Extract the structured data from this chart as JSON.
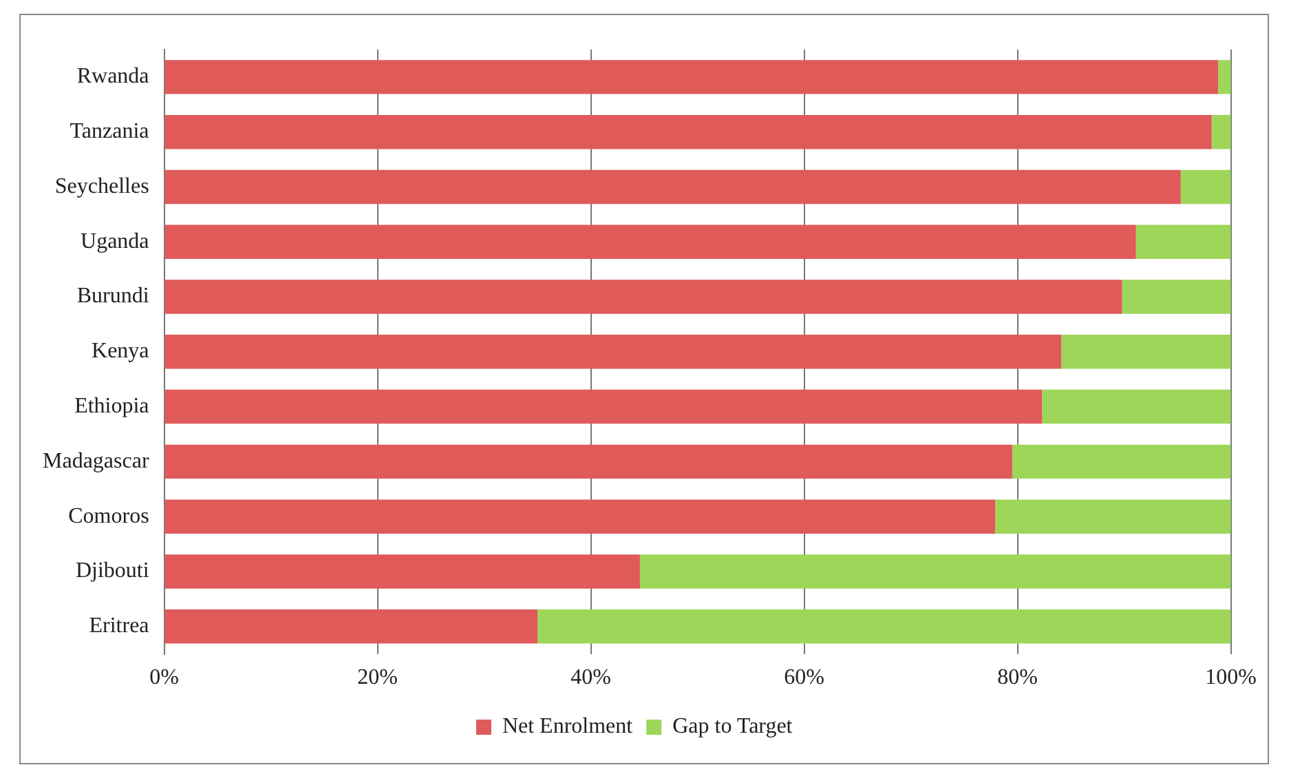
{
  "chart_data": {
    "type": "bar",
    "orientation": "horizontal",
    "stacked": true,
    "categories": [
      "Rwanda",
      "Tanzania",
      "Seychelles",
      "Uganda",
      "Burundi",
      "Kenya",
      "Ethiopia",
      "Madagascar",
      "Comoros",
      "Djibouti",
      "Eritrea"
    ],
    "series": [
      {
        "name": "Net Enrolment",
        "color": "#e05a5a",
        "values": [
          98.8,
          98.2,
          95.3,
          91.1,
          89.8,
          84.1,
          82.3,
          79.5,
          77.9,
          44.6,
          35.0
        ]
      },
      {
        "name": "Gap to Target",
        "color": "#9ed65a",
        "values": [
          1.2,
          1.8,
          4.7,
          8.9,
          10.2,
          15.9,
          17.7,
          20.5,
          22.1,
          55.4,
          65.0
        ]
      }
    ],
    "xlim": [
      0,
      100
    ],
    "xticks": [
      {
        "value": 0,
        "label": "0%"
      },
      {
        "value": 20,
        "label": "20%"
      },
      {
        "value": 40,
        "label": "40%"
      },
      {
        "value": 60,
        "label": "60%"
      },
      {
        "value": 80,
        "label": "80%"
      },
      {
        "value": 100,
        "label": "100%"
      }
    ],
    "grid": "x",
    "legend": "bottom"
  }
}
